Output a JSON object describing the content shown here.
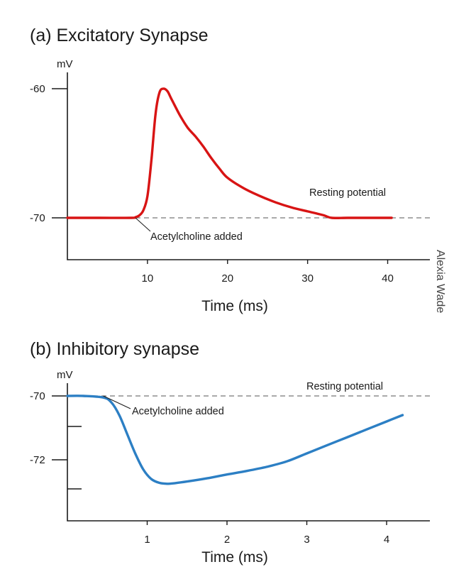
{
  "credit": "Alexia Wade",
  "chart_data": [
    {
      "type": "line",
      "title": "(a) Excitatory Synapse",
      "ylabel": "mV",
      "xlabel": "Time (ms)",
      "x_ticks": [
        10,
        20,
        30,
        40
      ],
      "y_ticks": [
        -60,
        -70
      ],
      "xlim": [
        0,
        45
      ],
      "ylim": [
        -73,
        -59
      ],
      "colors": {
        "series": "#d81414",
        "reference": "#777777"
      },
      "reference_line": {
        "label": "Resting potential",
        "value": -70
      },
      "annotation": {
        "text": "Acetylcholine added",
        "x": 8.5,
        "y": -70
      },
      "series": [
        {
          "x": [
            0,
            4,
            8,
            8.5,
            9,
            9.5,
            10,
            10.5,
            11,
            11.5,
            12,
            12.5,
            13,
            14,
            15,
            16,
            17,
            18,
            19,
            20,
            22,
            24,
            26,
            28,
            30,
            32,
            33,
            35,
            38,
            40.5
          ],
          "values": [
            -70,
            -70,
            -70,
            -69.95,
            -69.8,
            -69.4,
            -68.3,
            -65.5,
            -62,
            -60.3,
            -60,
            -60.2,
            -60.8,
            -62,
            -63,
            -63.7,
            -64.5,
            -65.4,
            -66.2,
            -66.9,
            -67.7,
            -68.3,
            -68.8,
            -69.2,
            -69.5,
            -69.8,
            -70,
            -70,
            -70,
            -70
          ]
        }
      ]
    },
    {
      "type": "line",
      "title": "(b) Inhibitory synapse",
      "ylabel": "mV",
      "xlabel": "Time (ms)",
      "x_ticks": [
        1,
        2,
        3,
        4
      ],
      "y_ticks": [
        -70,
        -72
      ],
      "xlim": [
        0,
        4.5
      ],
      "ylim": [
        -73.9,
        -69.6
      ],
      "colors": {
        "series": "#2c7fc4",
        "reference": "#777777"
      },
      "reference_line": {
        "label": "Resting potential",
        "value": -70
      },
      "annotation": {
        "text": "Acetylcholine added",
        "x": 0.45,
        "y": -70
      },
      "series": [
        {
          "x": [
            0,
            0.2,
            0.45,
            0.55,
            0.65,
            0.75,
            0.85,
            0.95,
            1.05,
            1.15,
            1.25,
            1.35,
            1.5,
            1.75,
            2.0,
            2.25,
            2.5,
            2.75,
            3.0,
            3.25,
            3.5,
            3.75,
            4.0,
            4.2
          ],
          "values": [
            -70,
            -70,
            -70.05,
            -70.2,
            -70.6,
            -71.2,
            -71.8,
            -72.3,
            -72.6,
            -72.72,
            -72.75,
            -72.73,
            -72.68,
            -72.58,
            -72.46,
            -72.35,
            -72.22,
            -72.05,
            -71.8,
            -71.55,
            -71.3,
            -71.05,
            -70.8,
            -70.6
          ]
        }
      ]
    }
  ]
}
